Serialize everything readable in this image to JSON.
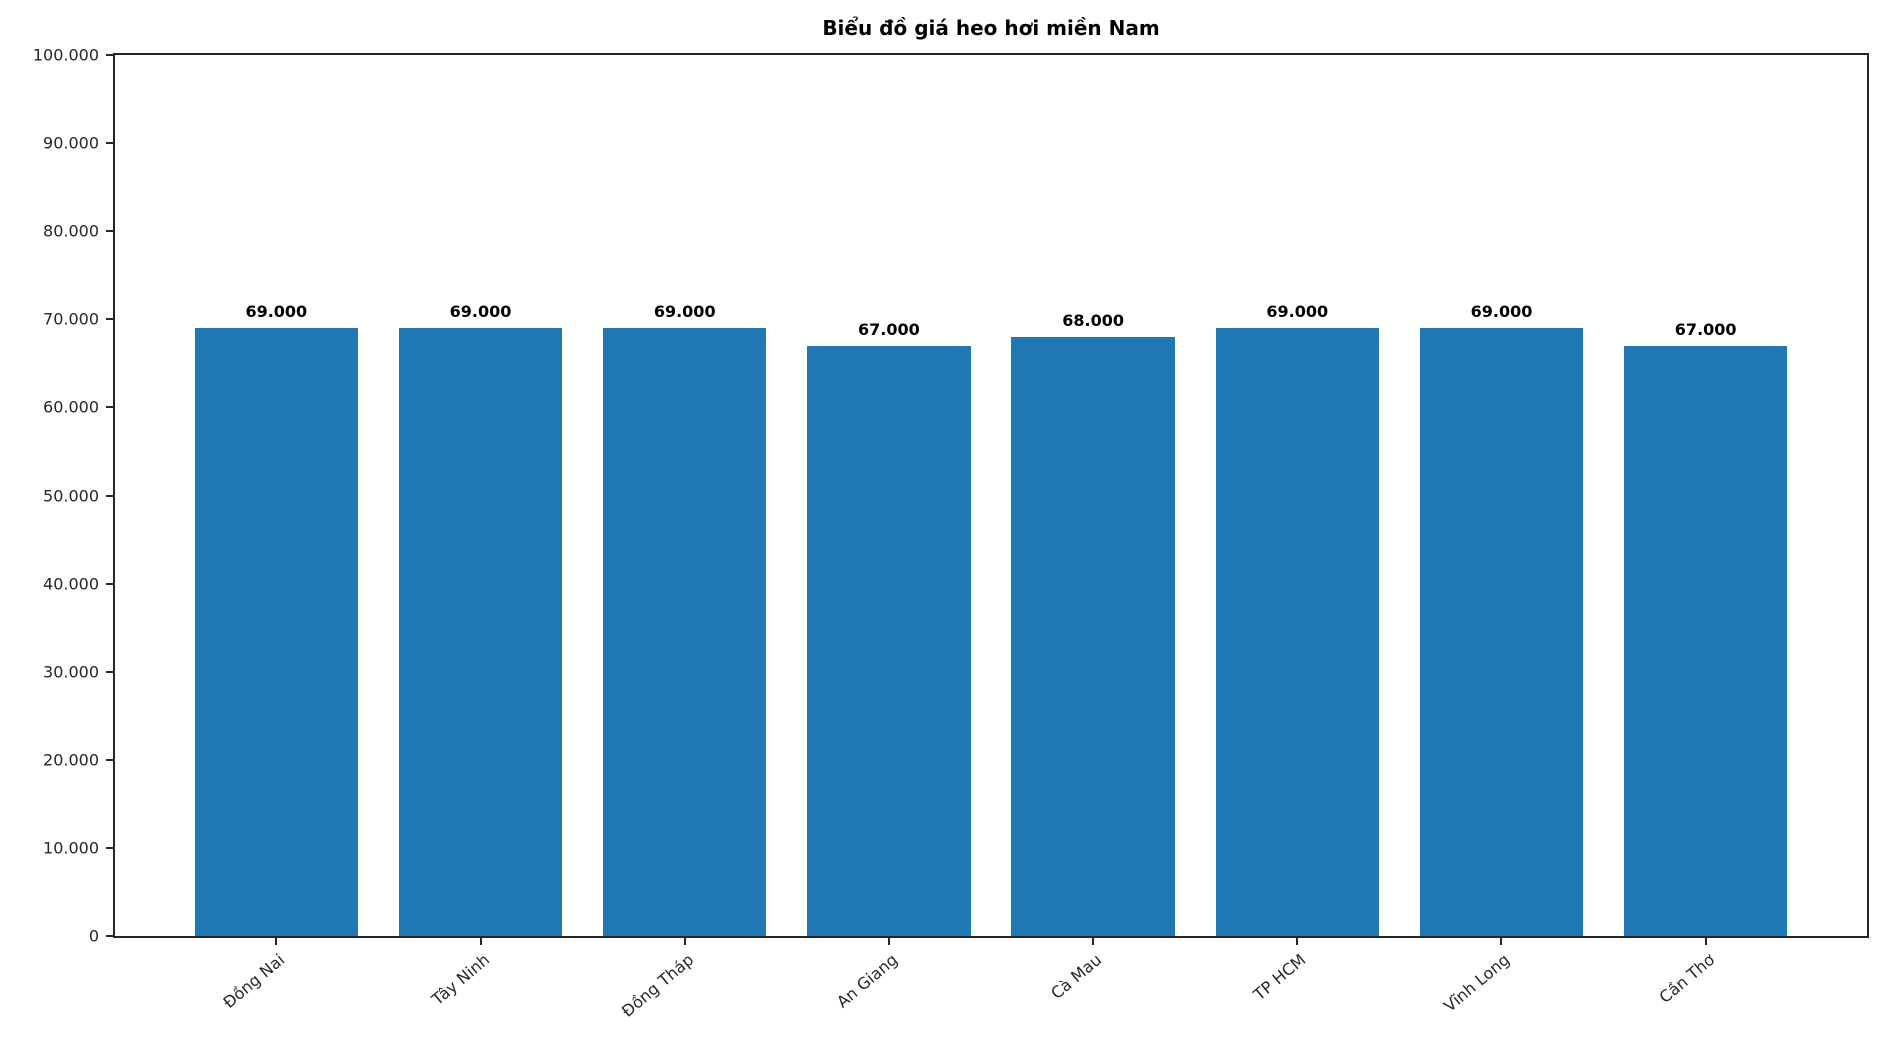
{
  "chart_data": {
    "type": "bar",
    "title": "Biểu đồ giá heo hơi miền Nam",
    "categories": [
      "Đồng Nai",
      "Tây Ninh",
      "Đồng Tháp",
      "An Giang",
      "Cà Mau",
      "TP HCM",
      "Vĩnh Long",
      "Cần Thơ"
    ],
    "values": [
      69000,
      69000,
      69000,
      67000,
      68000,
      69000,
      69000,
      67000
    ],
    "value_labels": [
      "69.000",
      "69.000",
      "69.000",
      "67.000",
      "68.000",
      "69.000",
      "69.000",
      "67.000"
    ],
    "xlabel": "",
    "ylabel": "",
    "ylim": [
      0,
      100000
    ],
    "xlim": [
      -0.79,
      7.79
    ],
    "yticks": [
      0,
      10000,
      20000,
      30000,
      40000,
      50000,
      60000,
      70000,
      80000,
      90000,
      100000
    ],
    "ytick_labels": [
      "0",
      "10.000",
      "20.000",
      "30.000",
      "40.000",
      "50.000",
      "60.000",
      "70.000",
      "80.000",
      "90.000",
      "100.000"
    ],
    "bar_width": 0.8,
    "bar_color": "#1f77b4",
    "grid": false,
    "legend_position": "none"
  }
}
